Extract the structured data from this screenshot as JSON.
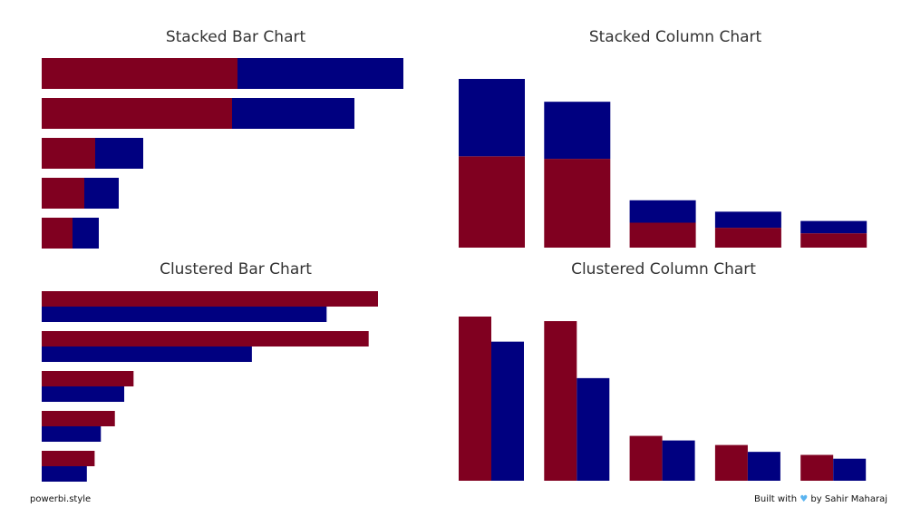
{
  "colors": {
    "series1": "#800020",
    "series2": "#000080"
  },
  "chart_data": [
    {
      "type": "bar",
      "orientation": "horizontal",
      "stacked": true,
      "title": "Stacked Bar Chart",
      "series": [
        {
          "values": [
            216,
            210,
            59,
            47,
            34
          ]
        },
        {
          "values": [
            183,
            135,
            53,
            38,
            29
          ]
        }
      ]
    },
    {
      "type": "bar",
      "orientation": "vertical",
      "stacked": true,
      "title": "Stacked Column Chart",
      "series": [
        {
          "values": [
            216,
            210,
            59,
            47,
            34
          ]
        },
        {
          "values": [
            183,
            135,
            53,
            38,
            29
          ]
        }
      ]
    },
    {
      "type": "bar",
      "orientation": "horizontal",
      "stacked": false,
      "title": "Clustered Bar Chart",
      "series": [
        {
          "values": [
            216,
            210,
            59,
            47,
            34
          ]
        },
        {
          "values": [
            183,
            135,
            53,
            38,
            29
          ]
        }
      ]
    },
    {
      "type": "bar",
      "orientation": "vertical",
      "stacked": false,
      "title": "Clustered Column Chart",
      "series": [
        {
          "values": [
            216,
            210,
            59,
            47,
            34
          ]
        },
        {
          "values": [
            183,
            135,
            53,
            38,
            29
          ]
        }
      ]
    }
  ],
  "footer": {
    "left": "powerbi.style",
    "right_prefix": "Built with",
    "heart_icon": "heart-icon",
    "right_suffix": "by Sahir Maharaj"
  }
}
